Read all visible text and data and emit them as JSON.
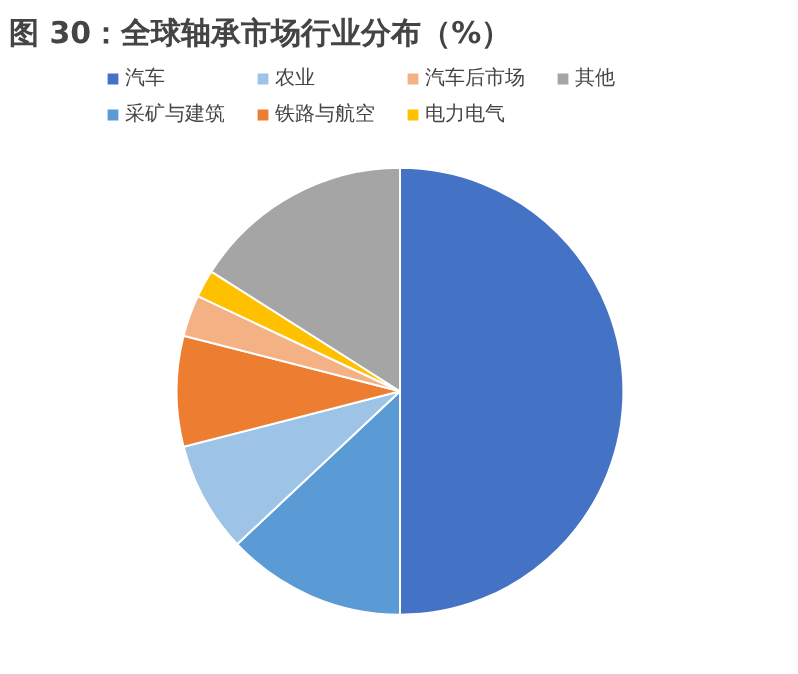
{
  "chart_data": {
    "type": "pie",
    "title": "图 30：全球轴承市场行业分布（%）",
    "categories": [
      "汽车",
      "采矿与建筑",
      "农业",
      "铁路与航空",
      "汽车后市场",
      "电力电气",
      "其他"
    ],
    "values": [
      50,
      13,
      8,
      8,
      3,
      2,
      16
    ],
    "colors": [
      "#4472c4",
      "#5b9bd5",
      "#9dc3e6",
      "#ed7d31",
      "#f4b183",
      "#ffc000",
      "#a5a5a5"
    ],
    "legend": "top"
  }
}
